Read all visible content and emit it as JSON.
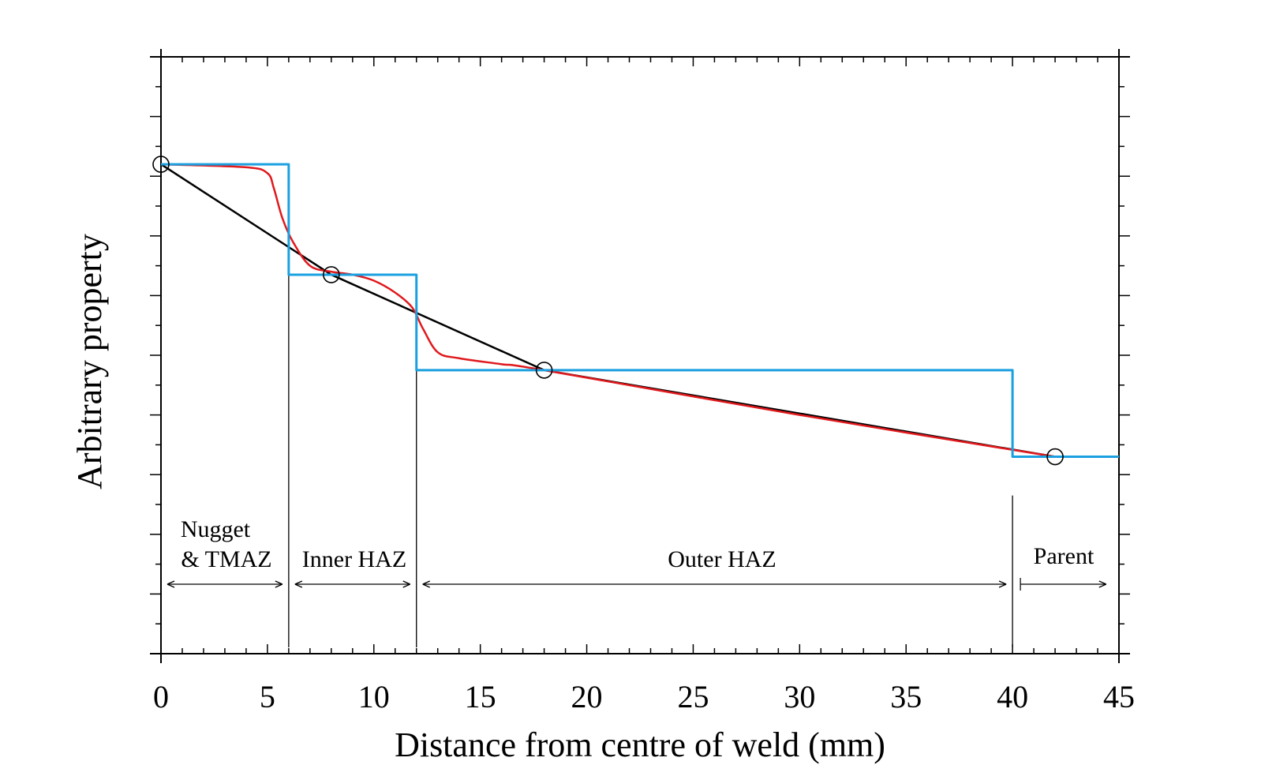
{
  "chart_data": {
    "type": "line",
    "xlabel": "Distance from centre of weld (mm)",
    "ylabel": "Arbitrary  property",
    "xlim": [
      0,
      45
    ],
    "ylim": [
      0,
      10
    ],
    "x_ticks": [
      "0",
      "5",
      "10",
      "15",
      "20",
      "25",
      "30",
      "35",
      "40",
      "45"
    ],
    "grid": false,
    "y_tick_labels_shown": false,
    "series": [
      {
        "style": "black straight line through measurement points",
        "color": "#000000",
        "x": [
          0,
          8,
          18,
          42
        ],
        "y": [
          8.2,
          6.35,
          4.75,
          3.3
        ]
      },
      {
        "style": "red smooth interpolation",
        "color": "#e0191d",
        "x": [
          0,
          4,
          5,
          5.3,
          5.7,
          6.2,
          7,
          8,
          9,
          10,
          11,
          11.8,
          12.3,
          13,
          14,
          16,
          18,
          30,
          42
        ],
        "y": [
          8.2,
          8.15,
          8.05,
          7.8,
          7.3,
          6.9,
          6.5,
          6.4,
          6.35,
          6.25,
          6.05,
          5.8,
          5.45,
          5.05,
          4.95,
          4.85,
          4.75,
          4.0,
          3.3
        ]
      },
      {
        "style": "blue step function",
        "color": "#1aa0e0",
        "x": [
          0,
          6,
          6,
          12,
          12,
          40,
          40,
          45
        ],
        "y": [
          8.2,
          8.2,
          6.35,
          6.35,
          4.75,
          4.75,
          3.3,
          3.3
        ]
      }
    ],
    "markers": {
      "style": "open circle",
      "x": [
        0,
        8,
        18,
        42
      ],
      "y": [
        8.2,
        6.35,
        4.75,
        3.3
      ]
    },
    "zone_boundaries": [
      6,
      12,
      40
    ],
    "zones": [
      {
        "label_line1": "Nugget",
        "label_line2": "& TMAZ",
        "from": 0,
        "to": 6
      },
      {
        "label_line1": "Inner HAZ",
        "label_line2": "",
        "from": 6,
        "to": 12
      },
      {
        "label_line1": "Outer HAZ",
        "label_line2": "",
        "from": 12,
        "to": 40
      },
      {
        "label_line1": "Parent",
        "label_line2": "",
        "from": 40,
        "to": 45
      }
    ]
  }
}
